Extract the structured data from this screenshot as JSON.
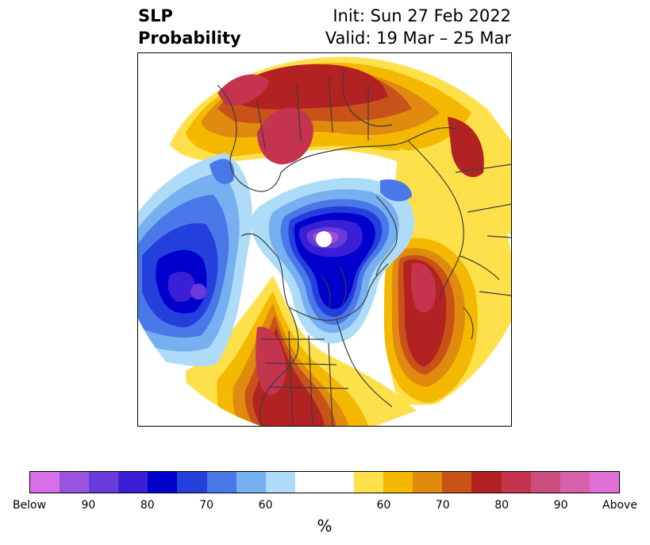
{
  "title": {
    "left_line1": "SLP",
    "left_line2": "Probability",
    "right_line1": "Init: Sun 27 Feb 2022",
    "right_line2": "Valid: 19 Mar – 25 Mar"
  },
  "colorbar": {
    "colors": [
      "#d86fe8",
      "#9a52e0",
      "#6a3ada",
      "#3a1fd6",
      "#0000cc",
      "#2340dd",
      "#4a78e8",
      "#76b0f0",
      "#aedcf8",
      "#ffffff",
      "#ffffff",
      "#fde04a",
      "#f5b800",
      "#e08a10",
      "#c85218",
      "#b22222",
      "#c4344e",
      "#cc4e7e",
      "#d860aa",
      "#e070d8"
    ],
    "ticks": [
      {
        "label": "Below"
      },
      {
        "label": "90"
      },
      {
        "label": "80"
      },
      {
        "label": "70"
      },
      {
        "label": "60"
      },
      {
        "label": "60"
      },
      {
        "label": "70"
      },
      {
        "label": "80"
      },
      {
        "label": "90"
      },
      {
        "label": "Above"
      }
    ],
    "unit": "%"
  }
}
